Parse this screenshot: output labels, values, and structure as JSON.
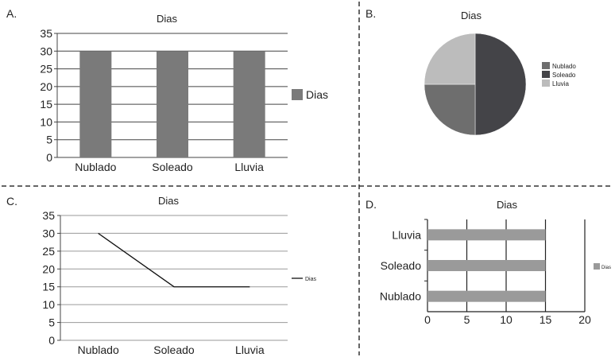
{
  "panels": [
    {
      "letter": "A."
    },
    {
      "letter": "B."
    },
    {
      "letter": "C."
    },
    {
      "letter": "D."
    }
  ],
  "colors": {
    "bar": "#7a7a7a",
    "nublado": "#6e6e6e",
    "soleado": "#444448",
    "lluvia": "#bcbcbc",
    "hbar": "#9a9a9a",
    "line": "#111111",
    "grid": "#444444"
  },
  "chart_data": [
    {
      "type": "bar",
      "title": "Dias",
      "categories": [
        "Nublado",
        "Soleado",
        "Lluvia"
      ],
      "series": [
        {
          "name": "Dias",
          "values": [
            30,
            30,
            30
          ]
        }
      ],
      "ylim": [
        0,
        35
      ],
      "yticks": [
        "0",
        "5",
        "10",
        "15",
        "20",
        "25",
        "30",
        "35"
      ],
      "legend": "right",
      "grid": true
    },
    {
      "type": "pie",
      "title": "Dias",
      "labels": [
        "Nublado",
        "Soleado",
        "Lluvia"
      ],
      "values": [
        25,
        50,
        25
      ],
      "legend": "right"
    },
    {
      "type": "line",
      "title": "Dias",
      "categories": [
        "Nublado",
        "Soleado",
        "Lluvia"
      ],
      "series": [
        {
          "name": "Dias",
          "values": [
            30,
            15,
            15
          ]
        }
      ],
      "ylim": [
        0,
        35
      ],
      "yticks": [
        "0",
        "5",
        "10",
        "15",
        "20",
        "25",
        "30",
        "35"
      ],
      "legend": "right",
      "grid": true
    },
    {
      "type": "bar",
      "orientation": "horizontal",
      "title": "Dias",
      "categories": [
        "Lluvia",
        "Soleado",
        "Nublado"
      ],
      "series": [
        {
          "name": "Dias",
          "values": [
            15,
            15,
            15
          ]
        }
      ],
      "xlim": [
        0,
        20
      ],
      "xticks": [
        "0",
        "5",
        "10",
        "15",
        "20"
      ],
      "legend": "right",
      "grid": true
    }
  ]
}
